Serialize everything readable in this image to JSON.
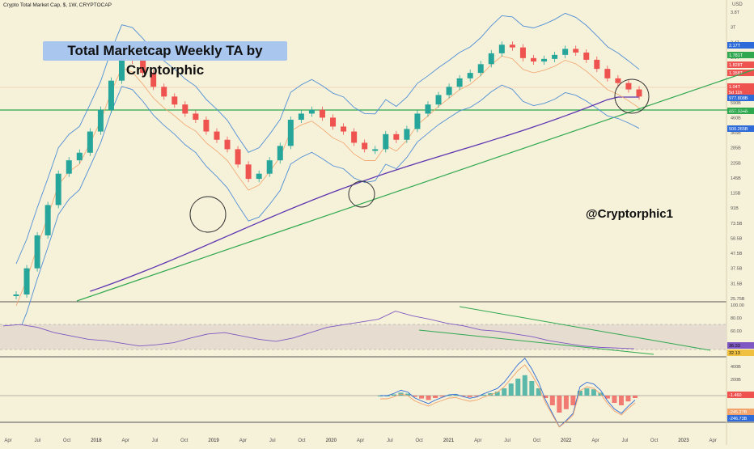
{
  "header": {
    "symbol_line": "Crypto Total Market Cap, $, 1W, CRYPTOCAP",
    "currency": "USD"
  },
  "annotations": {
    "title": "Total Marketcap Weekly TA by Cryptorphic",
    "handle": "@Cryptorphic1"
  },
  "colors": {
    "background": "#f6f1d9",
    "up_candle": "#26a69a",
    "down_candle": "#ef5350",
    "ma_purple": "#5e35b1",
    "bollinger": "#4f8fd6",
    "trendline_green": "#2fa84f",
    "ichimoku_orange": "#f2a36b",
    "rsi_line": "#7e57c2",
    "title_bg": "#a9c6ef"
  },
  "chart_data": [
    {
      "type": "line",
      "panel": "price",
      "scale": "log",
      "x_axis_labels": [
        "Apr",
        "Jul",
        "Oct",
        "2018",
        "Apr",
        "Jul",
        "Oct",
        "2019",
        "Apr",
        "Jul",
        "Oct",
        "2020",
        "Apr",
        "Jul",
        "Oct",
        "2021",
        "Apr",
        "Jul",
        "Oct",
        "2022",
        "Apr",
        "Jul",
        "Oct",
        "2023",
        "Apr"
      ],
      "y_ticks": [
        "3.8T",
        "3T",
        "2.4T",
        "1.9T",
        "1.2T",
        "760B",
        "590B",
        "460B",
        "365B",
        "285B",
        "225B",
        "145B",
        "115B",
        "91B",
        "73.5B",
        "58.5B",
        "47.5B",
        "37.5B",
        "31.5B",
        "25.75B"
      ],
      "price_tags": [
        {
          "label": "2.17T",
          "color": "#2e6bd8"
        },
        {
          "label": "1.781T",
          "color": "#2fa84f"
        },
        {
          "label": "1.828T",
          "color": "#ef5350"
        },
        {
          "label": "1.358T",
          "color": "#ef5350"
        },
        {
          "label": "1.04T",
          "color": "#ef5350"
        },
        {
          "label": "5d 11h",
          "color": "#ef5350"
        },
        {
          "label": "977.808B",
          "color": "#2e6bd8"
        },
        {
          "label": "857.534B",
          "color": "#2fa84f"
        },
        {
          "label": "500.265B",
          "color": "#2e6bd8"
        }
      ],
      "series": [
        {
          "values": [
            0.02,
            0.03,
            0.05,
            0.08,
            0.13,
            0.16,
            0.18,
            0.25,
            0.35,
            0.55,
            0.8,
            0.75,
            0.62,
            0.5,
            0.43,
            0.38,
            0.33,
            0.3,
            0.25,
            0.22,
            0.19,
            0.15,
            0.12,
            0.13,
            0.16,
            0.2,
            0.3,
            0.33,
            0.35,
            0.31,
            0.27,
            0.25,
            0.21,
            0.19,
            0.19,
            0.24,
            0.22,
            0.26,
            0.33,
            0.38,
            0.44,
            0.5,
            0.57,
            0.62,
            0.71,
            0.84,
            0.96,
            0.92,
            0.78,
            0.74,
            0.77,
            0.82,
            0.9,
            0.85,
            0.76,
            0.66,
            0.57,
            0.53,
            0.48,
            0.43
          ]
        }
      ]
    },
    {
      "type": "line",
      "panel": "rsi",
      "y_ticks": [
        "100.00",
        "80.00",
        "60.00",
        "40.00"
      ],
      "value_tags": [
        {
          "label": "36.33",
          "color": "#7e57c2"
        },
        {
          "label": "32.13",
          "color": "#f0c040"
        }
      ],
      "series": [
        {
          "values": [
            70,
            72,
            68,
            60,
            55,
            50,
            48,
            44,
            40,
            42,
            45,
            52,
            58,
            60,
            55,
            50,
            47,
            52,
            60,
            68,
            72,
            76,
            80,
            92,
            85,
            80,
            74,
            70,
            64,
            62,
            58,
            54,
            48,
            44,
            40,
            38,
            37,
            36
          ]
        }
      ]
    },
    {
      "type": "bar",
      "panel": "macd",
      "y_ticks": [
        "400B",
        "200B",
        "0.00"
      ],
      "value_tags": [
        {
          "label": "-1.460",
          "color": "#ef5350"
        },
        {
          "label": "-245.27B",
          "color": "#f2a36b"
        },
        {
          "label": "-246.73B",
          "color": "#2e6bd8"
        }
      ],
      "series": [
        {
          "values": [
            0,
            0,
            5,
            12,
            8,
            -5,
            -12,
            -18,
            -10,
            -4,
            2,
            3,
            -2,
            -6,
            -3,
            4,
            10,
            16,
            30,
            50,
            70,
            84,
            60,
            30,
            -10,
            -40,
            -70,
            -56,
            -40,
            20,
            30,
            26,
            12,
            -12,
            -30,
            -40,
            -24,
            -10
          ]
        }
      ]
    }
  ]
}
